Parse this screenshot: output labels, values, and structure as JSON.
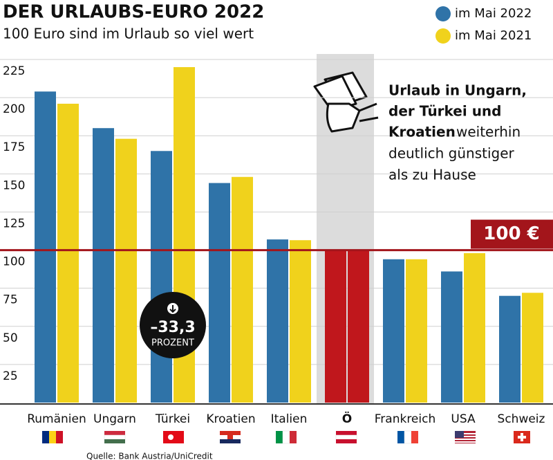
{
  "chart_data": {
    "type": "bar",
    "title": "DER URLAUBS-EURO 2022",
    "subtitle": "100 Euro sind im Urlaub so viel wert",
    "categories": [
      "Rumänien",
      "Ungarn",
      "Türkei",
      "Kroatien",
      "Italien",
      "Ö",
      "Frankreich",
      "USA",
      "Schweiz"
    ],
    "series": [
      {
        "name": "im Mai 2022",
        "color": "#2f73a8",
        "values": [
          204,
          180,
          165,
          144,
          107,
          100,
          94,
          86,
          70
        ]
      },
      {
        "name": "im Mai 2021",
        "color": "#f0d21c",
        "values": [
          196,
          173,
          220,
          148,
          106.5,
          100,
          94,
          98,
          72
        ]
      }
    ],
    "highlight_index": 5,
    "highlight_color": "#c0171c",
    "ylim": [
      0,
      230
    ],
    "yticks": [
      25,
      50,
      75,
      100,
      125,
      150,
      175,
      200,
      225
    ],
    "grid": true,
    "reference_line": {
      "value": 100,
      "label": "100 €"
    },
    "badge": {
      "value": "–33,3",
      "unit": "PROZENT"
    },
    "callout": [
      {
        "text": "Urlaub in Ungarn,",
        "bold": true
      },
      {
        "text": "der Türkei und",
        "bold": true
      },
      {
        "text": "Kroatien",
        "bold": true
      },
      {
        "text": "weiterhin",
        "bold": false
      },
      {
        "text": "deutlich günstiger",
        "bold": false
      },
      {
        "text": "als zu Hause",
        "bold": false
      }
    ],
    "source": "Quelle: Bank Austria/UniCredit"
  }
}
